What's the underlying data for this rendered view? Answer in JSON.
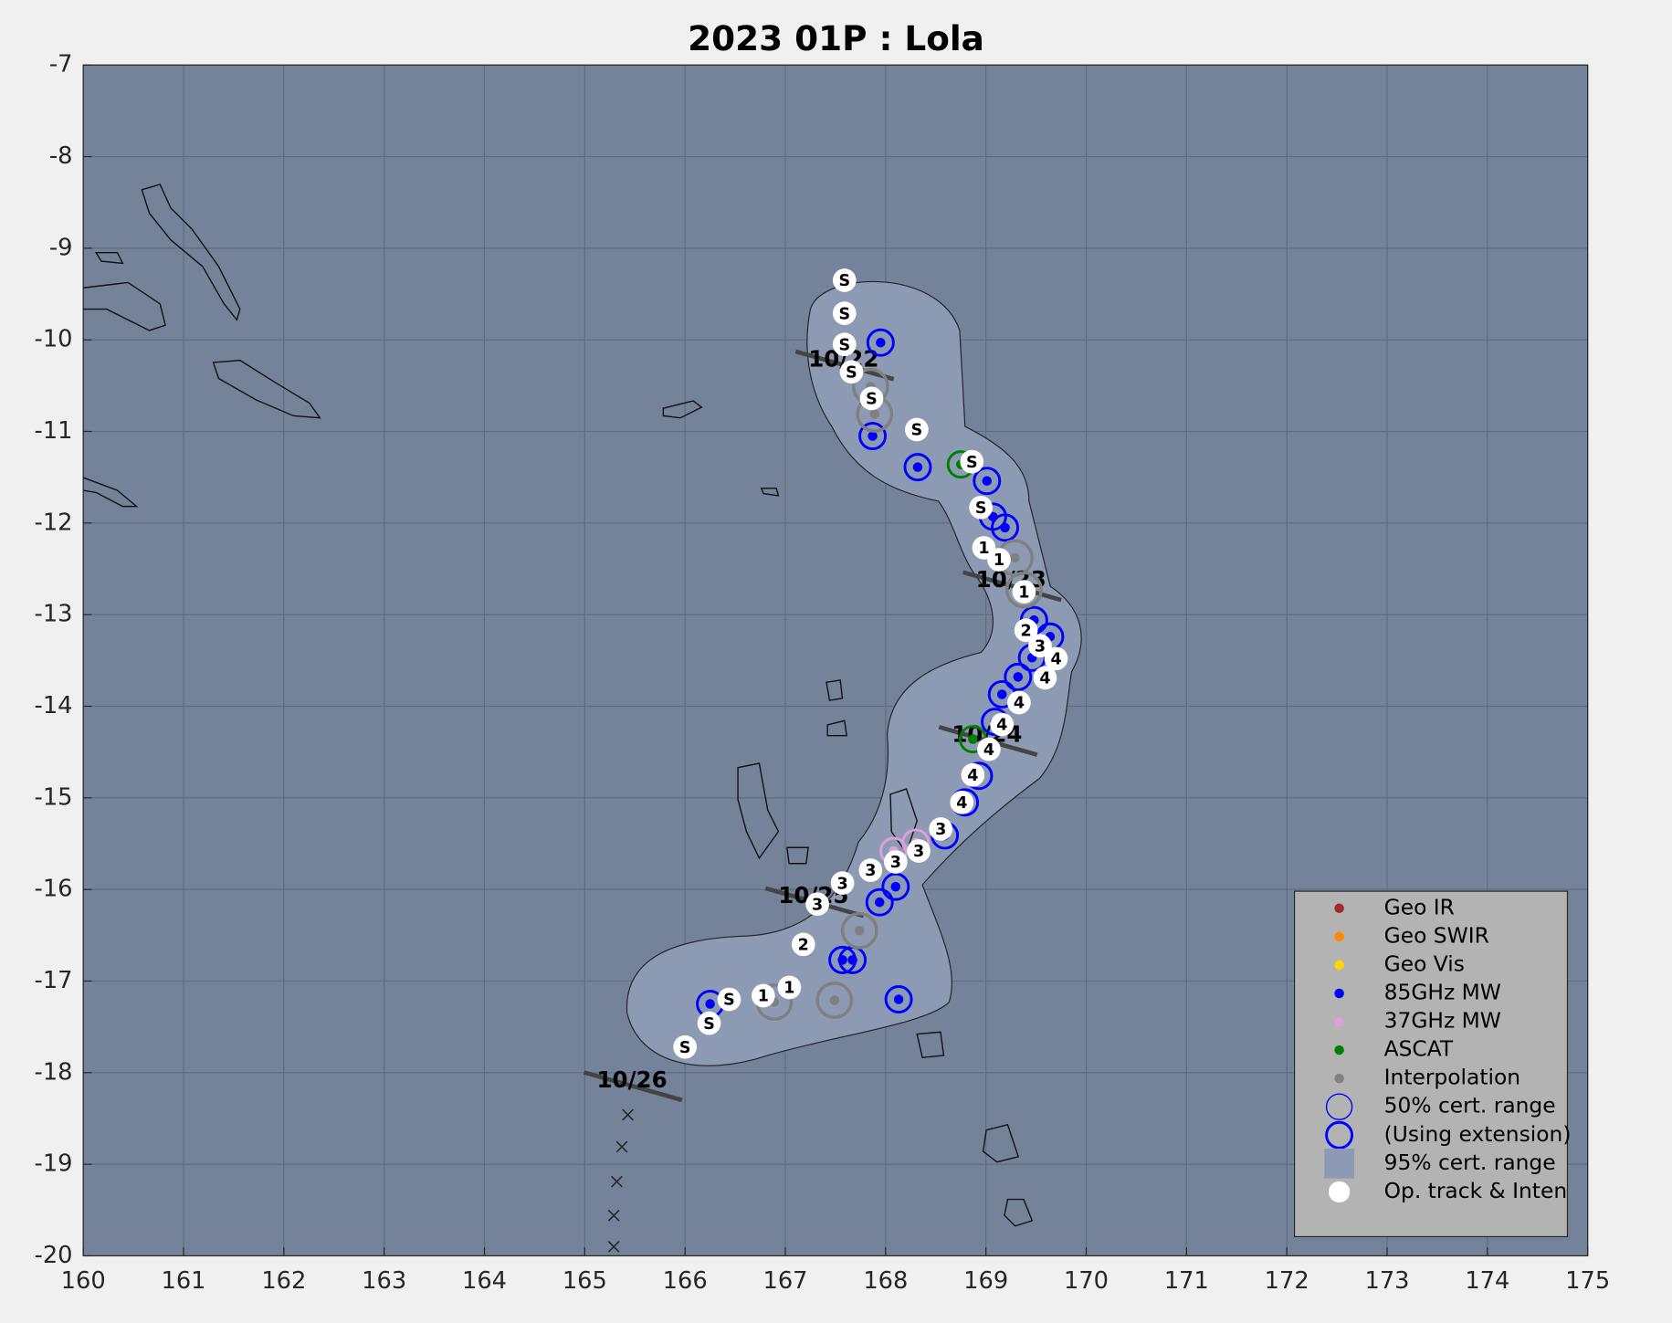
{
  "chart_data": {
    "type": "track",
    "title": "2023  01P :  Lola",
    "xlim": [
      160,
      175
    ],
    "ylim": [
      -20,
      -7
    ],
    "xticks": [
      160,
      161,
      162,
      163,
      164,
      165,
      166,
      167,
      168,
      169,
      170,
      171,
      172,
      173,
      174,
      175
    ],
    "yticks": [
      -20,
      -19,
      -18,
      -17,
      -16,
      -15,
      -14,
      -13,
      -12,
      -11,
      -10,
      -9,
      -8,
      -7
    ],
    "grid": true,
    "series": [
      {
        "name": "Geo IR",
        "color": "#a52a2a",
        "x": [],
        "y": []
      },
      {
        "name": "Geo SWIR",
        "color": "#ff8c00",
        "x": [],
        "y": []
      },
      {
        "name": "Geo Vis",
        "color": "#ffd700",
        "x": [],
        "y": []
      },
      {
        "name": "85GHz MW",
        "color": "#0000ff",
        "x": [
          167.95,
          167.87,
          168.32,
          169.01,
          169.07,
          169.19,
          169.48,
          169.64,
          169.46,
          169.32,
          169.16,
          169.09,
          168.93,
          168.79,
          168.59,
          168.1,
          167.94,
          167.57,
          167.67,
          168.13,
          166.25
        ],
        "y": [
          -10.03,
          -11.05,
          -11.39,
          -11.54,
          -11.93,
          -12.05,
          -13.06,
          -13.24,
          -13.47,
          -13.68,
          -13.87,
          -14.17,
          -14.76,
          -15.05,
          -15.41,
          -15.97,
          -16.14,
          -16.77,
          -16.77,
          -17.2,
          -17.25
        ]
      },
      {
        "name": "37GHz MW",
        "color": "#dda0dd",
        "x": [
          168.08,
          168.3
        ],
        "y": [
          -15.58,
          -15.49
        ]
      },
      {
        "name": "ASCAT",
        "color": "#008000",
        "x": [
          168.75,
          168.87
        ],
        "y": [
          -11.36,
          -14.36
        ]
      },
      {
        "name": "Interpolation",
        "color": "#808080",
        "x": [
          167.85,
          167.89,
          169.29,
          169.38,
          167.74,
          166.89,
          167.49
        ],
        "y": [
          -10.51,
          -10.81,
          -12.38,
          -12.73,
          -16.45,
          -17.23,
          -17.21
        ]
      }
    ],
    "legend_items": [
      {
        "name": "50% cert. range",
        "color": "#0000ff",
        "style": "circle"
      },
      {
        "name": "(Using extension)",
        "color": "#0000ff",
        "style": "thick-circle"
      },
      {
        "name": "95% cert. range",
        "color": "#8c9bb3",
        "style": "square"
      }
    ],
    "op_track": {
      "name": "Op. track & Inten",
      "color": "#ffffff",
      "x": [
        167.59,
        167.59,
        167.59,
        167.66,
        167.86,
        168.31,
        168.86,
        168.95,
        168.98,
        169.13,
        169.38,
        169.4,
        169.54,
        169.7,
        169.59,
        169.33,
        169.16,
        169.03,
        168.87,
        168.76,
        168.55,
        168.33,
        168.1,
        167.85,
        167.57,
        167.32,
        167.18,
        167.04,
        166.78,
        166.44,
        166.24,
        166.0
      ],
      "y": [
        -9.35,
        -9.71,
        -10.05,
        -10.35,
        -10.64,
        -10.98,
        -11.33,
        -11.83,
        -12.27,
        -12.4,
        -12.75,
        -13.17,
        -13.34,
        -13.48,
        -13.69,
        -13.96,
        -14.2,
        -14.47,
        -14.75,
        -15.05,
        -15.34,
        -15.58,
        -15.7,
        -15.79,
        -15.93,
        -16.16,
        -16.6,
        -17.07,
        -17.16,
        -17.2,
        -17.46,
        -17.72
      ],
      "labels": [
        "S",
        "S",
        "S",
        "S",
        "S",
        "S",
        "S",
        "S",
        "1",
        "1",
        "1",
        "2",
        "3",
        "4",
        "4",
        "4",
        "4",
        "4",
        "4",
        "4",
        "3",
        "3",
        "3",
        "3",
        "3",
        "3",
        "2",
        "1",
        "1",
        "S",
        "S",
        "S"
      ]
    },
    "date_labels": [
      {
        "text": "10/22",
        "x": 167.23,
        "y": -10.22
      },
      {
        "text": "10/23",
        "x": 168.9,
        "y": -12.63
      },
      {
        "text": "10/24",
        "x": 168.66,
        "y": -14.32
      },
      {
        "text": "10/25",
        "x": 166.93,
        "y": -16.08
      },
      {
        "text": "10/26",
        "x": 165.12,
        "y": -18.09
      }
    ],
    "forecast": {
      "x": [
        165.43,
        165.37,
        165.32,
        165.29,
        165.29
      ],
      "y": [
        -18.46,
        -18.81,
        -19.19,
        -19.56,
        -19.9
      ]
    }
  }
}
